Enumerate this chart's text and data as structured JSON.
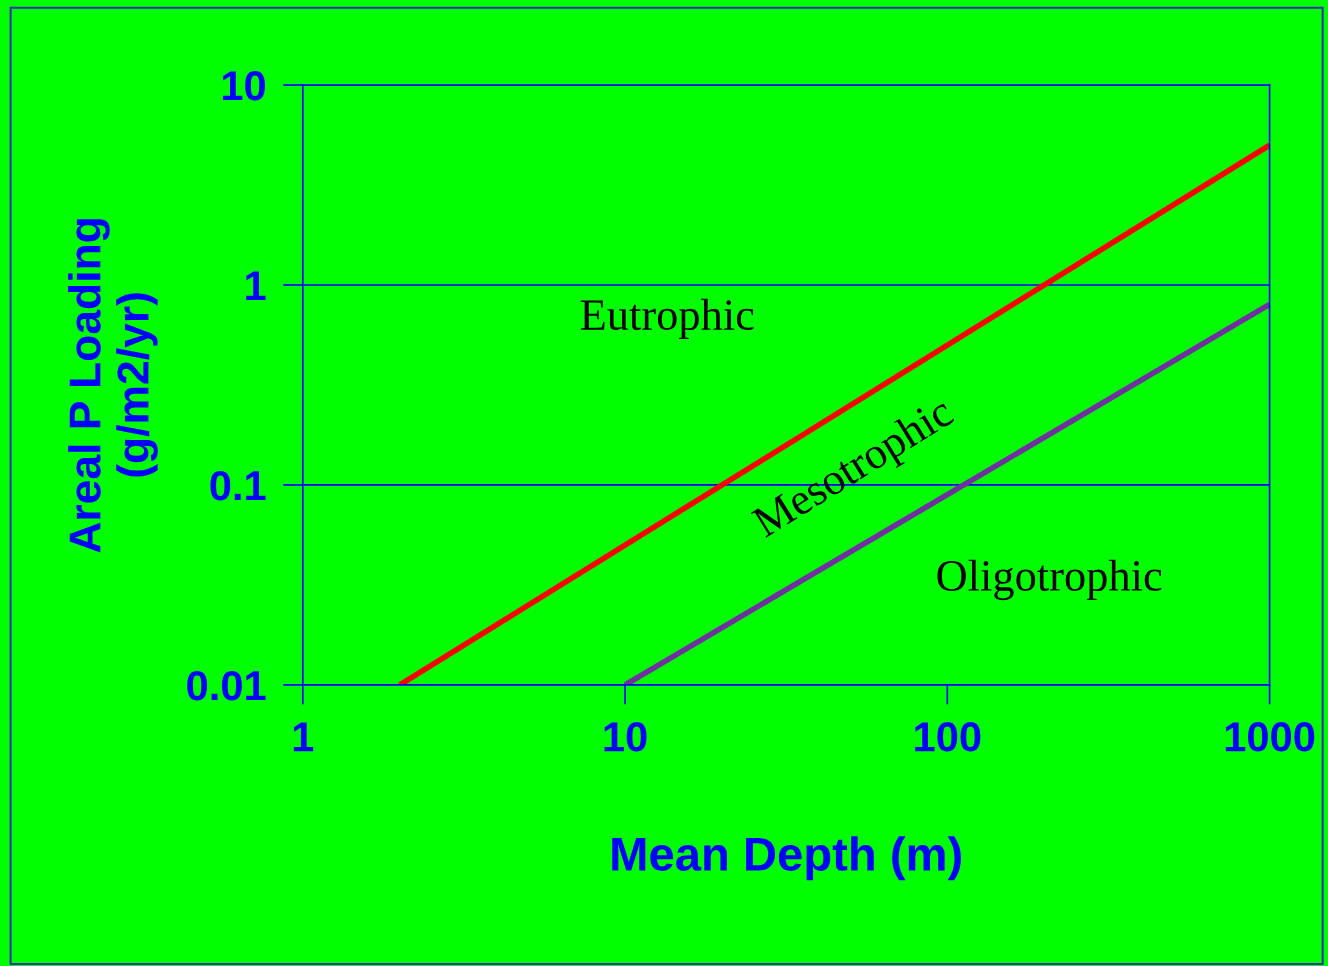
{
  "chart_data": {
    "type": "line",
    "xlabel": "Mean Depth (m)",
    "ylabel": "Areal P Loading\n(g/m2/yr)",
    "log": "xy",
    "xlim": [
      1,
      1000
    ],
    "xticks": [
      1,
      10,
      100,
      1000
    ],
    "ylim": [
      0.01,
      10
    ],
    "yticks": [
      0.01,
      0.1,
      1,
      10
    ],
    "grid": "y",
    "marker": "none",
    "line_style": "solid",
    "series": [
      {
        "x": [
          2,
          1000
        ],
        "values": [
          0.01,
          5
        ],
        "color": "#ff0000"
      },
      {
        "x": [
          10,
          1000
        ],
        "values": [
          0.01,
          0.8
        ],
        "color": "#7030a0"
      }
    ],
    "annotations": [
      "Eutrophic",
      "Mesotrophic",
      "Oligotrophic"
    ]
  }
}
